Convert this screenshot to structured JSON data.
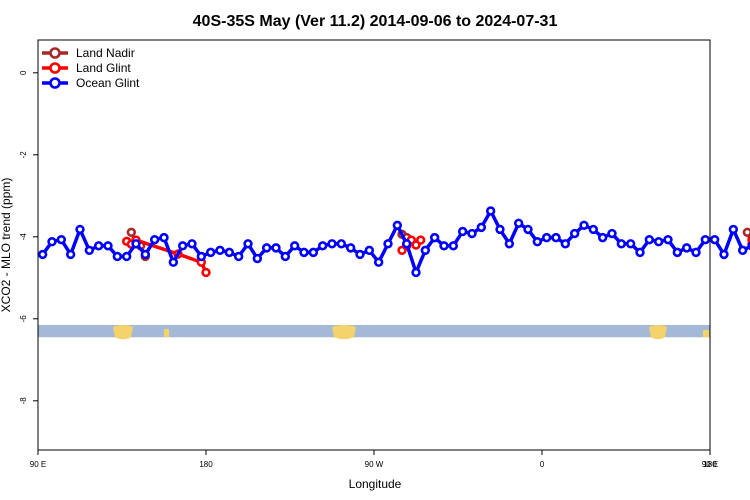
{
  "chart_data": {
    "type": "line",
    "title": "40S-35S May (Ver 11.2)   2014-09-06 to 2024-07-31",
    "xlabel": "Longitude",
    "ylabel": "XCO2 - MLO trend (ppm)",
    "xlim": [
      90,
      450
    ],
    "ylim": [
      -9.2,
      0.8
    ],
    "x_ticks": [
      {
        "value": 90,
        "label": "90 E"
      },
      {
        "value": 180,
        "label": "180"
      },
      {
        "value": 270,
        "label": "90 W"
      },
      {
        "value": 360,
        "label": "0"
      },
      {
        "value": 450,
        "label": "90 E"
      },
      {
        "value": 540,
        "label": "180"
      }
    ],
    "y_ticks": [
      {
        "value": 0,
        "label": "0"
      },
      {
        "value": -2,
        "label": "-2"
      },
      {
        "value": -4,
        "label": "-4"
      },
      {
        "value": -6,
        "label": "-6"
      },
      {
        "value": -8,
        "label": "-8"
      }
    ],
    "legend_position": "top-left",
    "land_strip_y": [
      -6.15,
      -6.45
    ],
    "series": [
      {
        "name": "Land Nadir",
        "color": "#a52a2a",
        "segments": [
          {
            "x": [
              140,
              142.5,
              145,
              147.5
            ],
            "y": [
              -3.89,
              -4.17,
              -4.22,
              -4.48
            ]
          },
          {
            "x": [
              285,
              287.5
            ],
            "y": [
              -3.94,
              -4.02
            ]
          },
          {
            "x": [
              470,
              472.5,
              475,
              477.5
            ],
            "y": [
              -3.89,
              -4.18,
              -4.12,
              -4.47
            ]
          }
        ]
      },
      {
        "name": "Land Glint",
        "color": "#ff0000",
        "segments": [
          {
            "x": [
              137.5,
              140,
              142.5,
              165,
              177.5,
              180
            ],
            "y": [
              -4.11,
              -4.18,
              -4.08,
              -4.42,
              -4.62,
              -4.87
            ]
          },
          {
            "x": [
              285,
              287.5,
              290,
              292.5,
              295
            ],
            "y": [
              -4.33,
              -4.22,
              -4.08,
              -4.2,
              -4.08
            ]
          },
          {
            "x": [
              472.5,
              475,
              477.5
            ],
            "y": [
              -4.08,
              -4.22,
              -4.12
            ]
          },
          {
            "x": [
              487.5,
              490
            ],
            "y": [
              -4.65,
              -4.88
            ]
          }
        ]
      },
      {
        "name": "Ocean Glint",
        "color": "#0000ff",
        "segments": [
          {
            "x": [
              92.5,
              97.5,
              102.5,
              107.5,
              112.5,
              117.5,
              122.5,
              127.5,
              132.5,
              137.5,
              142.5,
              147.5,
              152.5,
              157.5,
              162.5,
              167.5,
              172.5,
              177.5,
              182.5,
              187.5,
              192.5,
              197.5,
              202.5,
              207.5,
              212.5,
              217.5,
              222.5,
              227.5,
              232.5,
              237.5,
              242.5,
              247.5,
              252.5,
              257.5,
              262.5,
              267.5,
              272.5,
              277.5,
              282.5,
              287.5,
              292.5,
              297.5,
              302.5,
              307.5,
              312.5,
              317.5,
              322.5,
              327.5,
              332.5,
              337.5,
              342.5,
              347.5,
              352.5,
              357.5,
              362.5,
              367.5,
              372.5,
              377.5,
              382.5,
              387.5,
              392.5,
              397.5,
              402.5,
              407.5,
              412.5,
              417.5,
              422.5,
              427.5,
              432.5,
              437.5,
              442.5,
              447.5,
              452.5,
              457.5,
              462.5,
              467.5,
              472.5,
              477.5,
              482.5,
              487.5,
              492.5
            ],
            "y": [
              -4.43,
              -4.12,
              -4.07,
              -4.43,
              -3.82,
              -4.33,
              -4.22,
              -4.22,
              -4.48,
              -4.48,
              -4.17,
              -4.43,
              -4.07,
              -4.02,
              -4.62,
              -4.22,
              -4.17,
              -4.48,
              -4.38,
              -4.33,
              -4.38,
              -4.48,
              -4.17,
              -4.53,
              -4.27,
              -4.27,
              -4.48,
              -4.22,
              -4.38,
              -4.38,
              -4.22,
              -4.17,
              -4.17,
              -4.27,
              -4.43,
              -4.33,
              -4.62,
              -4.17,
              -3.72,
              -4.17,
              -4.87,
              -4.33,
              -4.02,
              -4.22,
              -4.22,
              -3.87,
              -3.92,
              -3.77,
              -3.37,
              -3.82,
              -4.17,
              -3.67,
              -3.82,
              -4.12,
              -4.02,
              -4.02,
              -4.17,
              -3.92,
              -3.72,
              -3.82,
              -4.02,
              -3.92,
              -4.17,
              -4.17,
              -4.38,
              -4.07,
              -4.12,
              -4.07,
              -4.38,
              -4.27,
              -4.38,
              -4.07,
              -4.07,
              -4.43,
              -3.82,
              -4.33,
              -4.22,
              -4.22,
              -4.48,
              -4.48,
              -4.17
            ]
          }
        ]
      }
    ]
  }
}
